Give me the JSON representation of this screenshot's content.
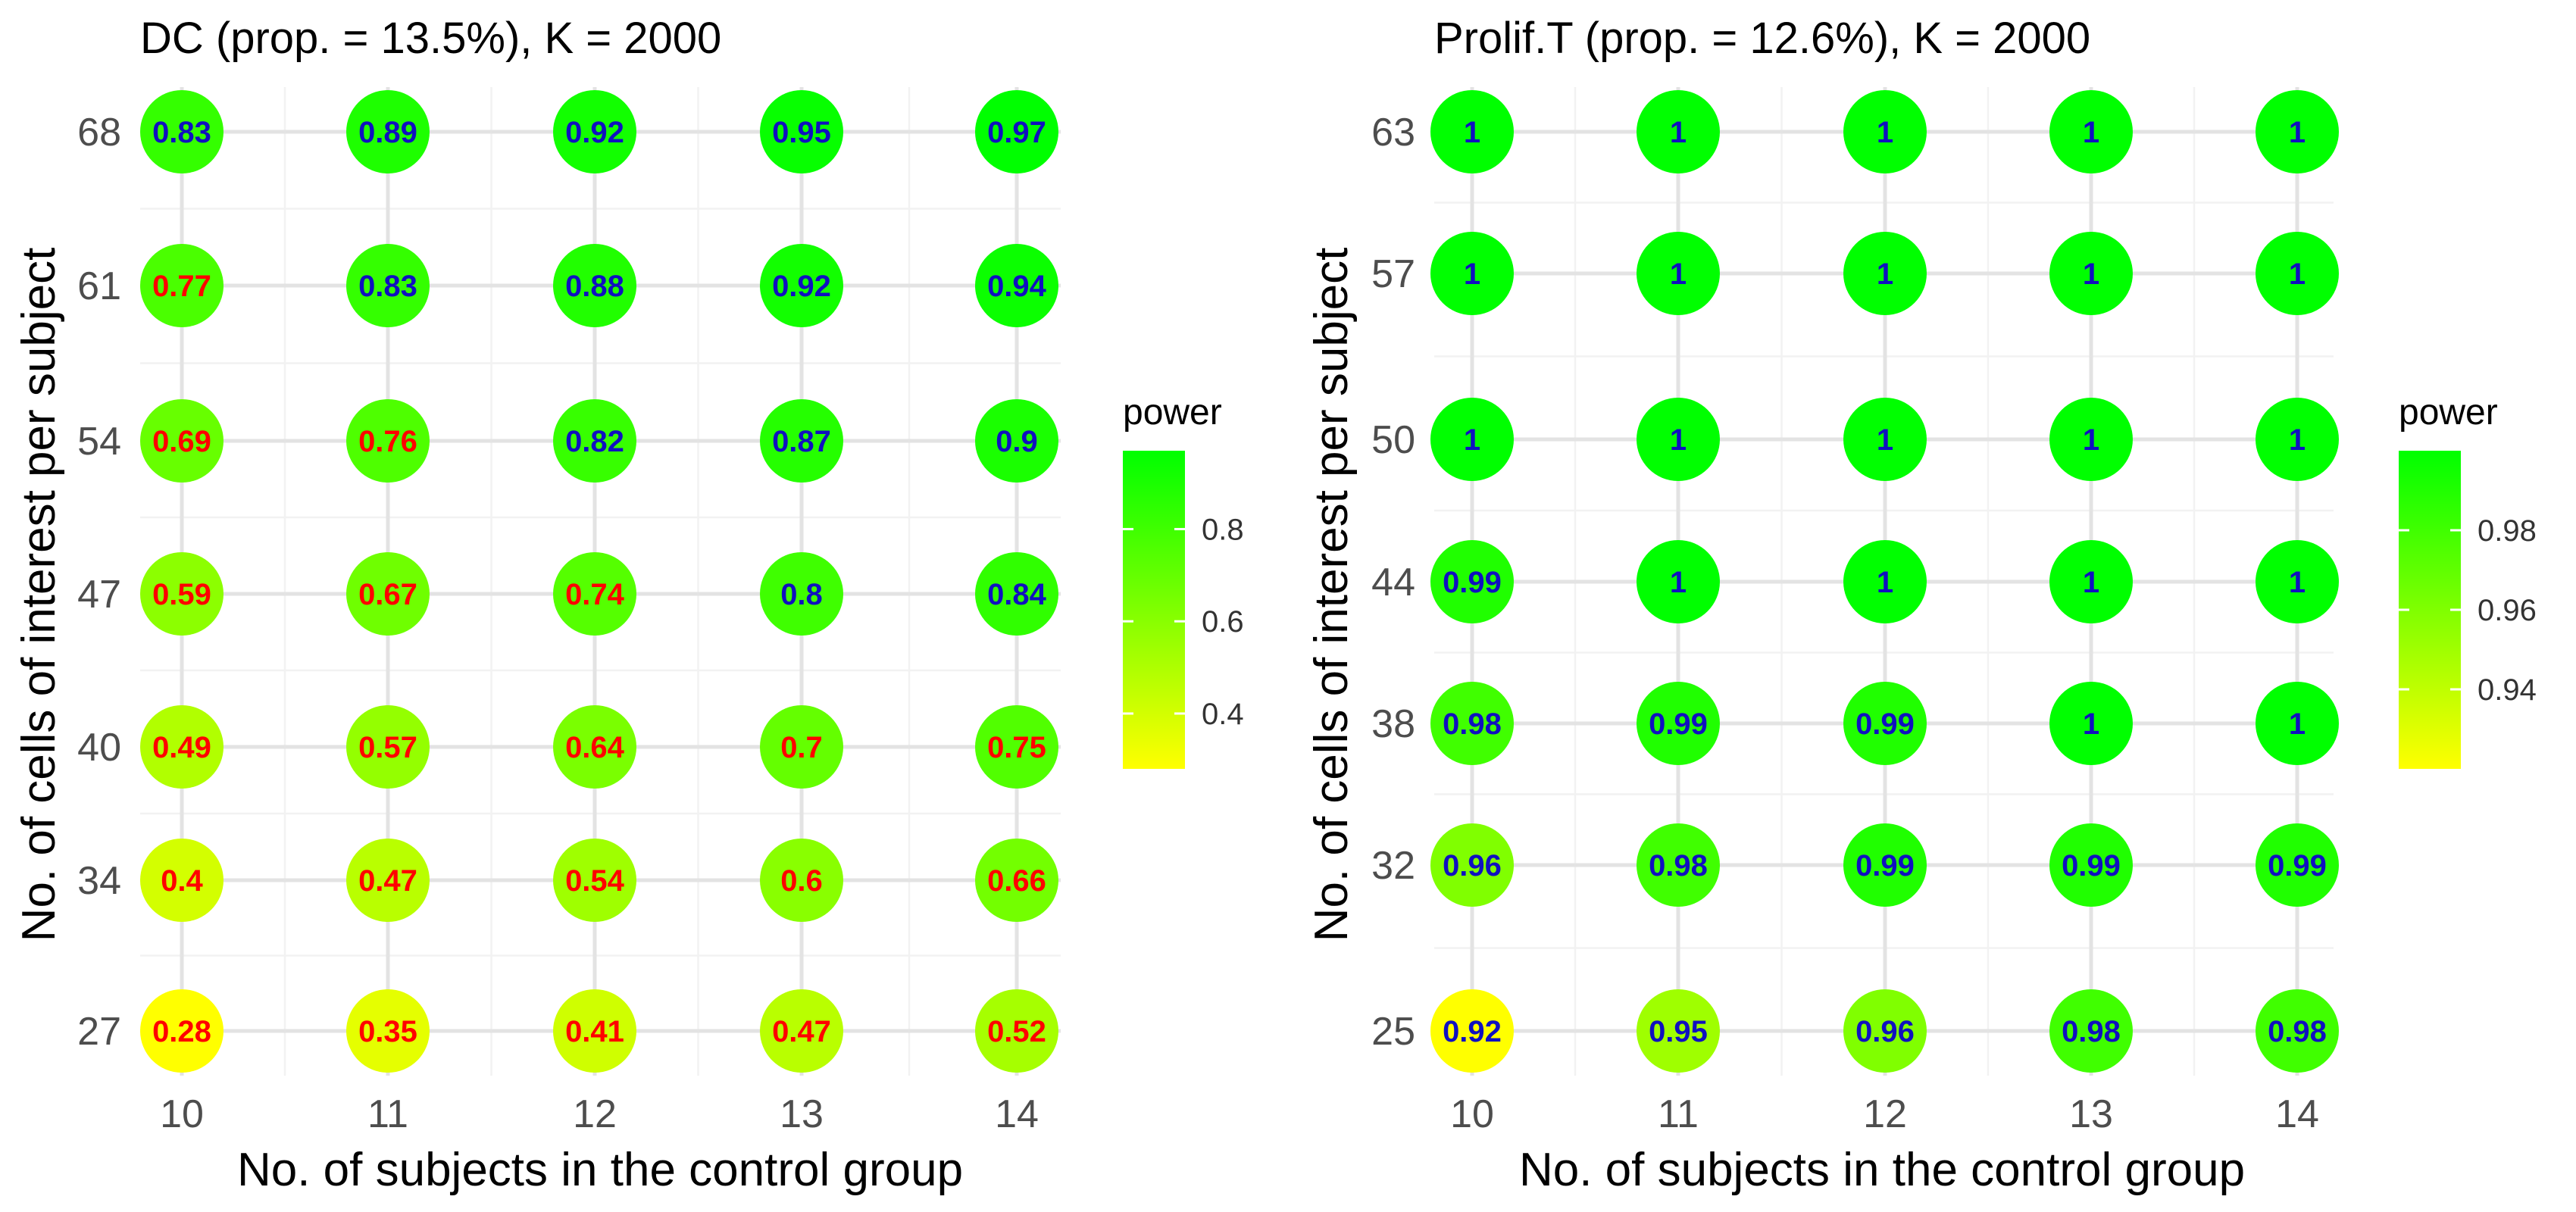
{
  "chart_data": [
    {
      "type": "scatter",
      "title": "DC (prop. = 13.5%), K = 2000",
      "xlabel": "No. of subjects in the control group",
      "ylabel": "No. of cells of interest per subject",
      "x_categories": [
        "10",
        "11",
        "12",
        "13",
        "14"
      ],
      "y_categories": [
        "27",
        "34",
        "40",
        "47",
        "54",
        "61",
        "68"
      ],
      "values": [
        [
          0.28,
          0.35,
          0.41,
          0.47,
          0.52
        ],
        [
          0.4,
          0.47,
          0.54,
          0.6,
          0.66
        ],
        [
          0.49,
          0.57,
          0.64,
          0.7,
          0.75
        ],
        [
          0.59,
          0.67,
          0.74,
          0.8,
          0.84
        ],
        [
          0.69,
          0.76,
          0.82,
          0.87,
          0.9
        ],
        [
          0.77,
          0.83,
          0.88,
          0.92,
          0.94
        ],
        [
          0.83,
          0.89,
          0.92,
          0.95,
          0.97
        ]
      ],
      "label_threshold": 0.8,
      "legend": {
        "title": "power",
        "range": [
          0.28,
          0.97
        ],
        "ticks": [
          0.4,
          0.6,
          0.8
        ],
        "tick_labels": [
          "0.4",
          "0.6",
          "0.8"
        ],
        "placement": "right"
      },
      "colors": {
        "low": "#ffff00",
        "high": "#00ff00",
        "label_below": "#ff0000",
        "label_above": "#1010c0"
      }
    },
    {
      "type": "scatter",
      "title": "Prolif.T (prop. = 12.6%), K = 2000",
      "xlabel": "No. of subjects in the control group",
      "ylabel": "No. of cells of interest per subject",
      "x_categories": [
        "10",
        "11",
        "12",
        "13",
        "14"
      ],
      "y_categories": [
        "25",
        "32",
        "38",
        "44",
        "50",
        "57",
        "63"
      ],
      "values": [
        [
          0.92,
          0.95,
          0.96,
          0.98,
          0.98
        ],
        [
          0.96,
          0.98,
          0.99,
          0.99,
          0.99
        ],
        [
          0.98,
          0.99,
          0.99,
          1,
          1
        ],
        [
          0.99,
          1,
          1,
          1,
          1
        ],
        [
          1,
          1,
          1,
          1,
          1
        ],
        [
          1,
          1,
          1,
          1,
          1
        ],
        [
          1,
          1,
          1,
          1,
          1
        ]
      ],
      "label_threshold": 0.8,
      "legend": {
        "title": "power",
        "range": [
          0.92,
          1.0
        ],
        "ticks": [
          0.94,
          0.96,
          0.98
        ],
        "tick_labels": [
          "0.94",
          "0.96",
          "0.98"
        ],
        "placement": "right"
      },
      "colors": {
        "low": "#ffff00",
        "high": "#00ff00",
        "label_below": "#ff0000",
        "label_above": "#1010c0"
      }
    }
  ]
}
